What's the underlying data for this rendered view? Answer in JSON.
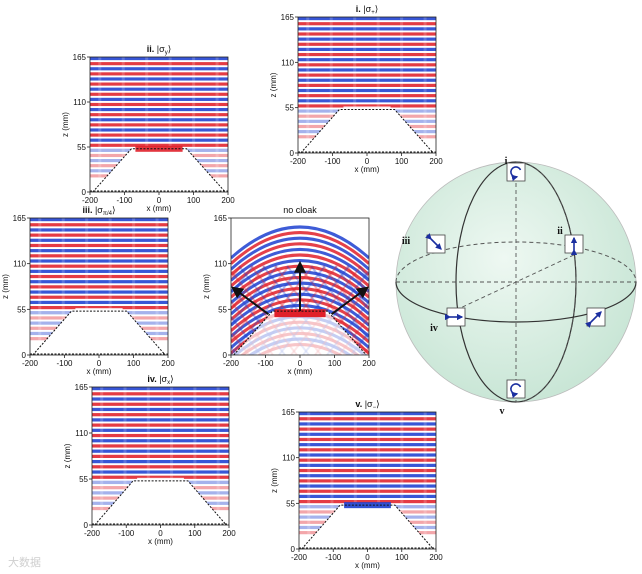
{
  "figure": {
    "panels": [
      {
        "id": "ii",
        "numeral": "ii.",
        "state": "|σ_y⟩",
        "main": "|σ",
        "sub": "y",
        "close": "⟩",
        "xlabel": "x (mm)",
        "ylabel": "z (mm)",
        "xticks": [
          "-200",
          "-100",
          "0",
          "100",
          "200"
        ],
        "yticks": [
          "0",
          "55",
          "110",
          "165"
        ],
        "cloak_profile": "hex"
      },
      {
        "id": "i",
        "numeral": "i.",
        "state": "|σ_+⟩",
        "main": "|σ",
        "sub": "+",
        "close": "⟩",
        "xlabel": "x (mm)",
        "ylabel": "z (mm)",
        "xticks": [
          "-200",
          "-100",
          "0",
          "100",
          "200"
        ],
        "yticks": [
          "0",
          "55",
          "110",
          "165"
        ],
        "cloak_profile": "hex"
      },
      {
        "id": "iii",
        "numeral": "iii.",
        "state": "|σ_π/4⟩",
        "main": "|σ",
        "sub": "π/4",
        "close": "⟩",
        "xlabel": "x (mm)",
        "ylabel": "z (mm)",
        "xticks": [
          "-200",
          "-100",
          "0",
          "100",
          "200"
        ],
        "yticks": [
          "0",
          "55",
          "110",
          "165"
        ],
        "cloak_profile": "hex"
      },
      {
        "id": "nocloak",
        "numeral": "",
        "state": "no cloak",
        "main": "no cloak",
        "sub": "",
        "close": "",
        "xlabel": "x (mm)",
        "ylabel": "z (mm)",
        "xticks": [
          "-200",
          "-100",
          "0",
          "100",
          "200"
        ],
        "yticks": [
          "0",
          "55",
          "110",
          "165"
        ],
        "cloak_profile": "none"
      },
      {
        "id": "iv",
        "numeral": "iv.",
        "state": "|σ_x⟩",
        "main": "|σ",
        "sub": "x",
        "close": "⟩",
        "xlabel": "x (mm)",
        "ylabel": "z (mm)",
        "xticks": [
          "-200",
          "-100",
          "0",
          "100",
          "200"
        ],
        "yticks": [
          "0",
          "55",
          "110",
          "165"
        ],
        "cloak_profile": "hex"
      },
      {
        "id": "v",
        "numeral": "v.",
        "state": "|σ_−⟩",
        "main": "|σ",
        "sub": "−",
        "close": "⟩",
        "xlabel": "x (mm)",
        "ylabel": "z (mm)",
        "xticks": [
          "-200",
          "-100",
          "0",
          "100",
          "200"
        ],
        "yticks": [
          "0",
          "55",
          "110",
          "165"
        ],
        "cloak_profile": "hex"
      }
    ],
    "colormap": {
      "positive": "#e0202a",
      "negative": "#1c3fd0",
      "zero": "#ffffff"
    },
    "sphere": {
      "fill": "#d8eee2",
      "labels": [
        {
          "id": "i",
          "text": "i",
          "glyph": "circular-arrow"
        },
        {
          "id": "ii",
          "text": "ii",
          "glyph": "vertical-arrow"
        },
        {
          "id": "iii",
          "text": "iii",
          "glyph": "diagonal-arrow"
        },
        {
          "id": "iv",
          "text": "iv",
          "glyph": "horizontal-arrow"
        },
        {
          "id": "v",
          "text": "v",
          "glyph": "circular-arrow"
        },
        {
          "id": "diag",
          "text": "",
          "glyph": "diagonal-arrow"
        }
      ]
    },
    "watermark": "大数据"
  }
}
